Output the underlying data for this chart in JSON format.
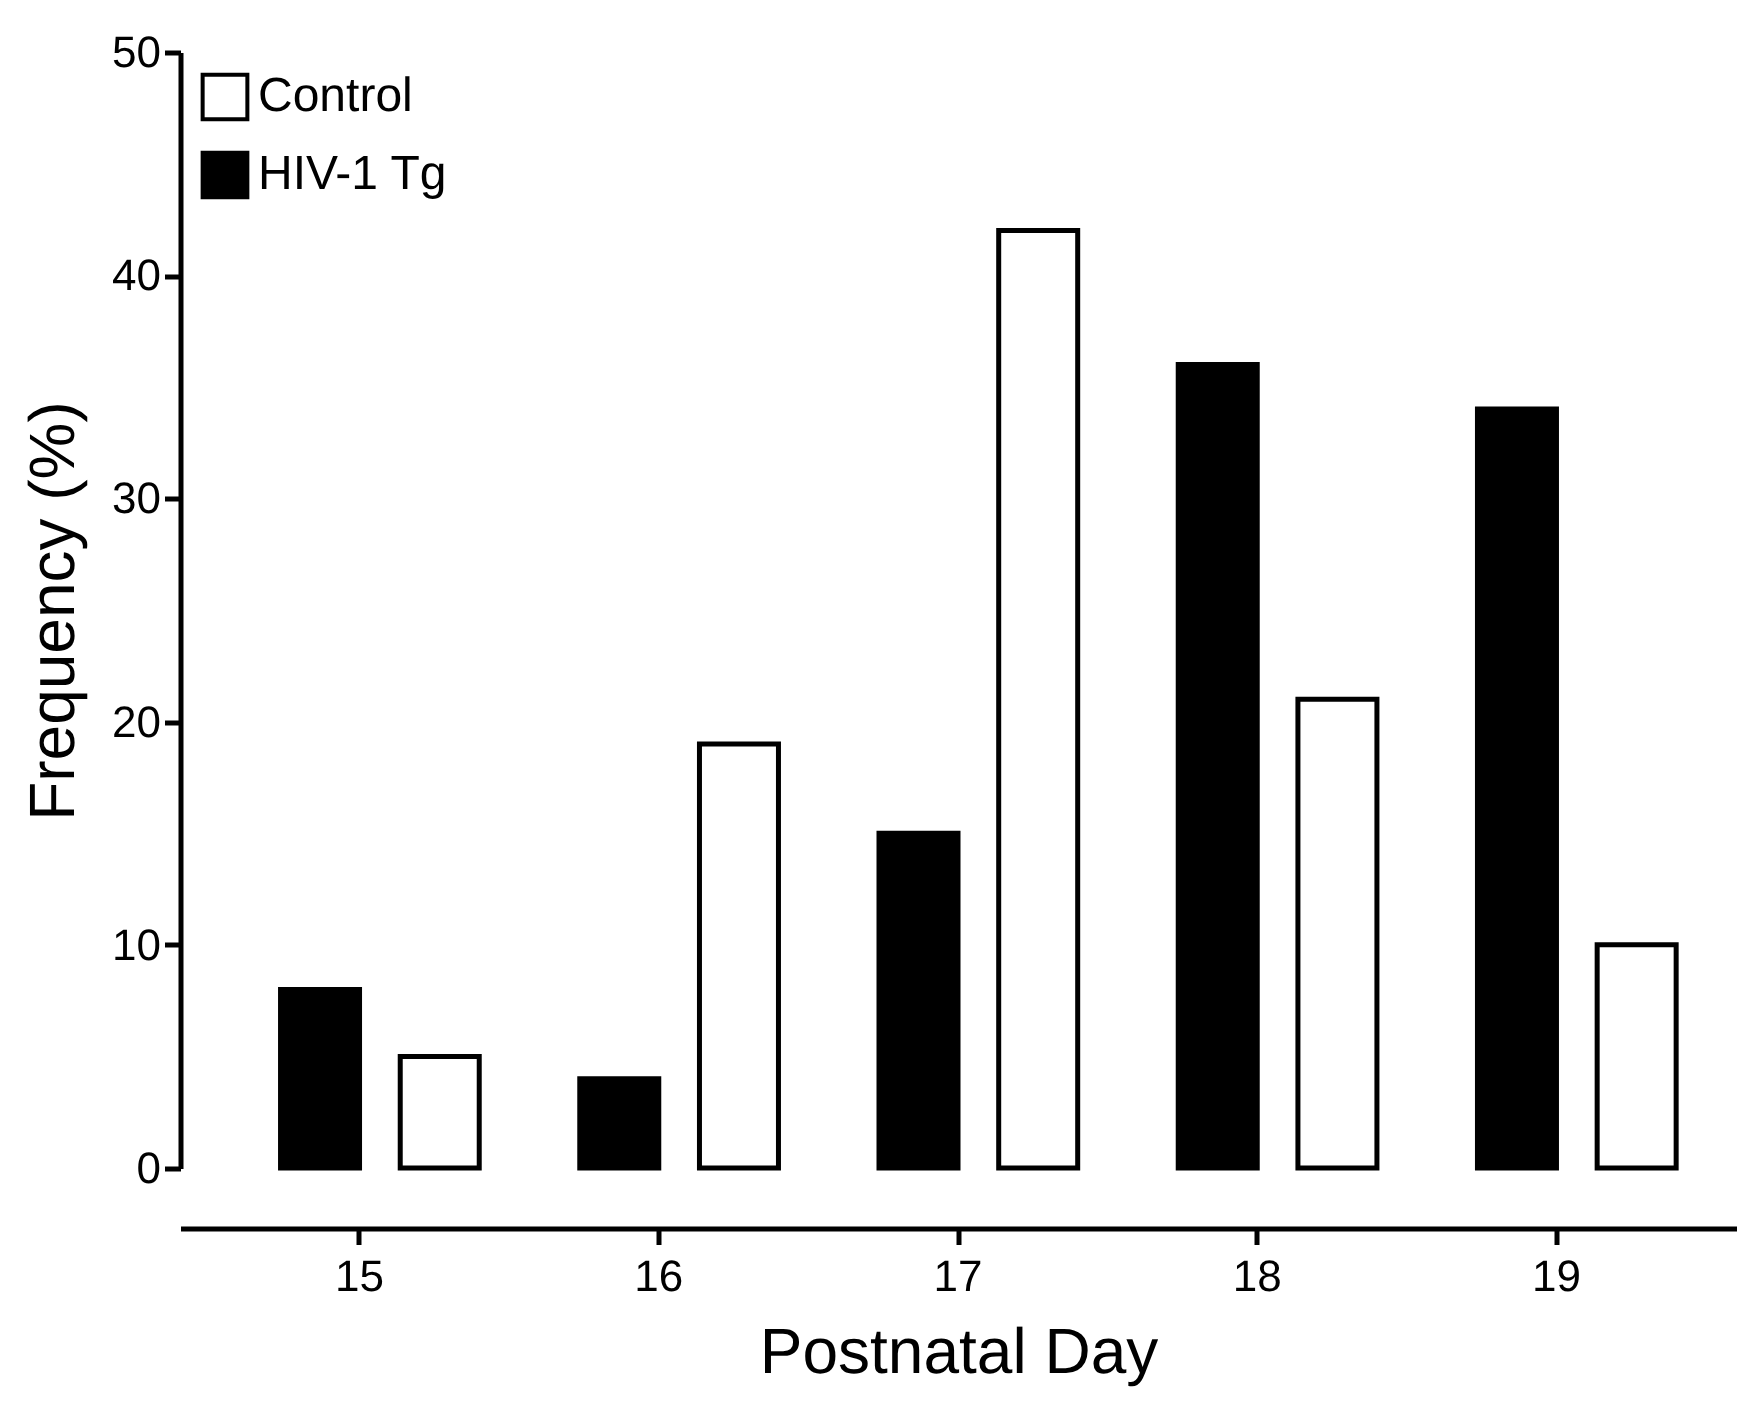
{
  "chart_data": {
    "type": "bar",
    "xlabel": "Postnatal Day",
    "ylabel": "Frequency (%)",
    "categories": [
      "15",
      "16",
      "17",
      "18",
      "19"
    ],
    "series": [
      {
        "name": "Control",
        "color": "#ffffff",
        "values": [
          5,
          19,
          42,
          21,
          10
        ]
      },
      {
        "name": "HIV-1 Tg",
        "color": "#000000",
        "values": [
          8,
          4,
          15,
          36,
          34
        ]
      }
    ],
    "ylim": [
      0,
      50
    ],
    "yticks": [
      0,
      10,
      20,
      30,
      40,
      50
    ],
    "grid": false,
    "legend": "top left"
  }
}
